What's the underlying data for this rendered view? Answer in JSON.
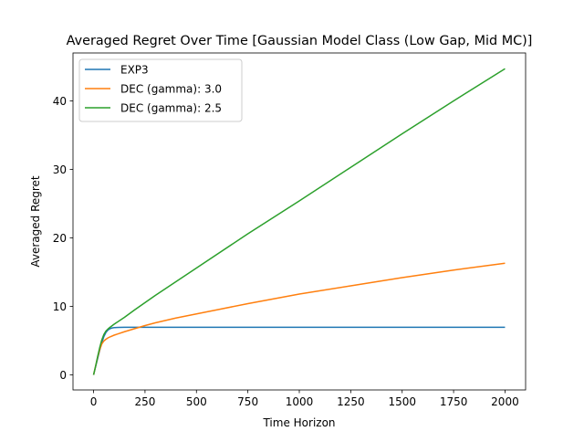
{
  "chart_data": {
    "type": "line",
    "title": "Averaged Regret Over Time [Gaussian Model Class (Low Gap, Mid MC)]",
    "xlabel": "Time Horizon",
    "ylabel": "Averaged Regret",
    "xlim": [
      -100,
      2100
    ],
    "ylim": [
      -2.2,
      47.0
    ],
    "xticks": [
      0,
      250,
      500,
      750,
      1000,
      1250,
      1500,
      1750,
      2000
    ],
    "yticks": [
      0,
      10,
      20,
      30,
      40
    ],
    "grid": false,
    "legend_position": "top-left",
    "series": [
      {
        "name": "EXP3",
        "color": "#1f77b4",
        "x": [
          0,
          10,
          20,
          30,
          40,
          50,
          60,
          70,
          80,
          90,
          100,
          125,
          150,
          200,
          300,
          500,
          1000,
          1500,
          2000
        ],
        "y": [
          0,
          1.2,
          2.4,
          3.6,
          4.7,
          5.6,
          6.2,
          6.55,
          6.75,
          6.85,
          6.9,
          6.93,
          6.95,
          6.95,
          6.95,
          6.95,
          6.95,
          6.95,
          6.95
        ]
      },
      {
        "name": "DEC (gamma): 3.0",
        "color": "#ff7f0e",
        "x": [
          0,
          10,
          20,
          30,
          40,
          50,
          60,
          70,
          80,
          100,
          150,
          200,
          250,
          300,
          400,
          500,
          600,
          750,
          1000,
          1250,
          1500,
          1750,
          2000
        ],
        "y": [
          0,
          1.3,
          2.6,
          3.7,
          4.5,
          4.95,
          5.2,
          5.4,
          5.55,
          5.8,
          6.3,
          6.75,
          7.2,
          7.6,
          8.3,
          8.9,
          9.5,
          10.4,
          11.8,
          13.0,
          14.2,
          15.3,
          16.3
        ]
      },
      {
        "name": "DEC (gamma): 2.5",
        "color": "#2ca02c",
        "x": [
          0,
          10,
          20,
          30,
          40,
          50,
          60,
          70,
          80,
          100,
          150,
          200,
          300,
          500,
          750,
          1000,
          1250,
          1500,
          1750,
          2000
        ],
        "y": [
          0,
          1.3,
          2.7,
          4.0,
          5.1,
          5.9,
          6.4,
          6.7,
          6.95,
          7.4,
          8.4,
          9.5,
          11.6,
          15.6,
          20.6,
          25.4,
          30.3,
          35.2,
          40.0,
          44.7
        ]
      }
    ]
  }
}
